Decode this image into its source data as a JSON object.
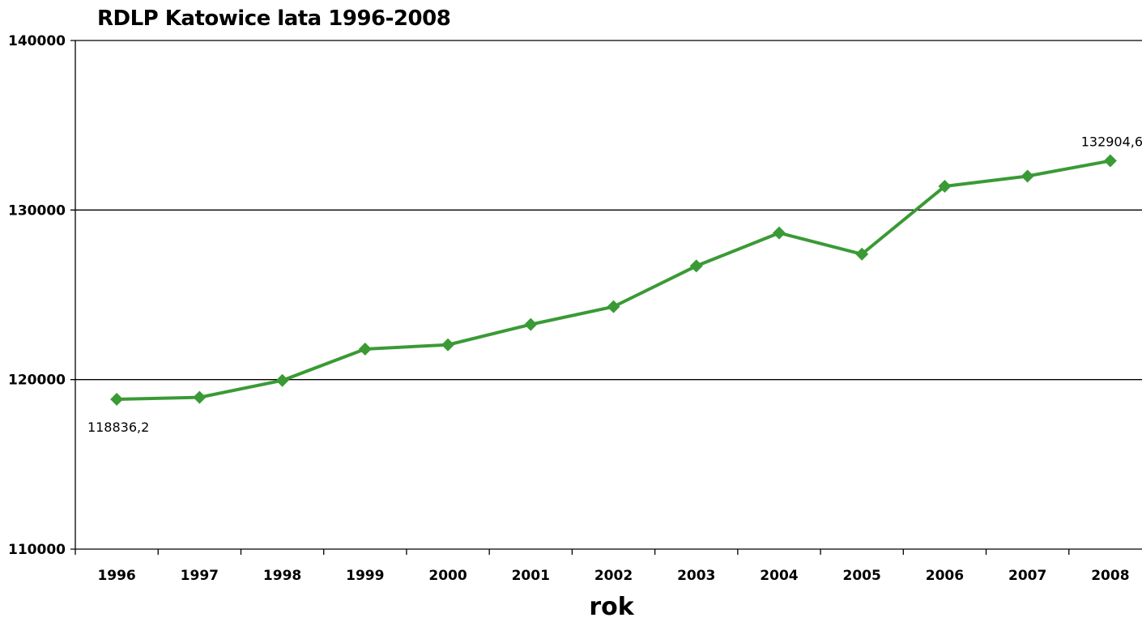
{
  "chart_data": {
    "type": "line",
    "title": "RDLP Katowice lata 1996-2008",
    "xlabel": "rok",
    "ylabel": "",
    "categories": [
      "1996",
      "1997",
      "1998",
      "1999",
      "2000",
      "2001",
      "2002",
      "2003",
      "2004",
      "2005",
      "2006",
      "2007",
      "2008"
    ],
    "series": [
      {
        "values": [
          118836.2,
          118950,
          119950,
          121800,
          122050,
          123250,
          124300,
          126700,
          128650,
          127400,
          131400,
          132000,
          132904.6
        ]
      }
    ],
    "ylim": [
      110000,
      140000
    ],
    "yticks": [
      "110000",
      "120000",
      "130000",
      "140000"
    ],
    "data_labels": [
      {
        "index": 0,
        "text": "118836,2",
        "position": "below"
      },
      {
        "index": 12,
        "text": "132904,6",
        "position": "above"
      }
    ],
    "grid": true,
    "legend": "none",
    "line_color": "#3a9a35"
  }
}
